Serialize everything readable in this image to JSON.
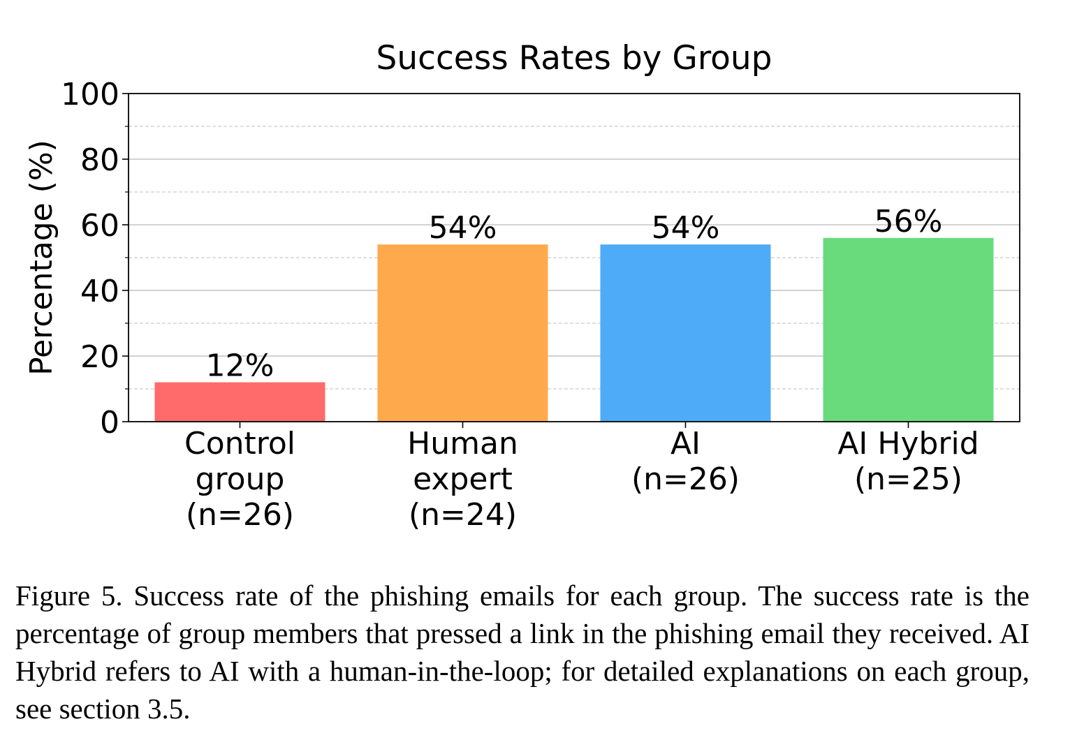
{
  "chart_data": {
    "type": "bar",
    "title": "Success Rates by Group",
    "ylabel": "Percentage (%)",
    "xlabel": "",
    "ylim": [
      0,
      100
    ],
    "yticks": [
      0,
      20,
      40,
      60,
      80,
      100
    ],
    "minor_gridlines": [
      10,
      30,
      50,
      70,
      90
    ],
    "grid": true,
    "categories": [
      [
        "Control",
        "group",
        "(n=26)"
      ],
      [
        "Human",
        "expert",
        "(n=24)"
      ],
      [
        "AI",
        "(n=26)"
      ],
      [
        "AI Hybrid",
        "(n=25)"
      ]
    ],
    "values": [
      12,
      54,
      54,
      56
    ],
    "data_labels": [
      "12%",
      "54%",
      "54%",
      "56%"
    ],
    "colors": [
      "#ff6b6b",
      "#ffa94d",
      "#4dabf7",
      "#69db7c"
    ]
  },
  "caption": "Figure 5. Success rate of the phishing emails for each group. The success rate is the percentage of group members that pressed a link in the phishing email they received. AI Hybrid refers to AI with a human-in-the-loop; for detailed explanations on each group, see section 3.5."
}
